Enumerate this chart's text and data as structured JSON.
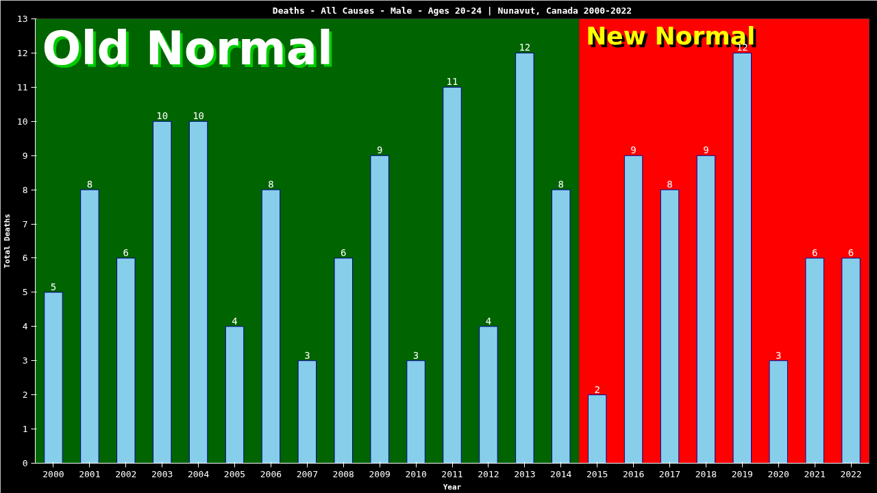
{
  "chart_data": {
    "type": "bar",
    "title": "Deaths - All Causes - Male - Ages 20-24 | Nunavut, Canada 2000-2022",
    "xlabel": "Year",
    "ylabel": "Total Deaths",
    "categories": [
      "2000",
      "2001",
      "2002",
      "2003",
      "2004",
      "2005",
      "2006",
      "2007",
      "2008",
      "2009",
      "2010",
      "2011",
      "2012",
      "2013",
      "2014",
      "2015",
      "2016",
      "2017",
      "2018",
      "2019",
      "2020",
      "2021",
      "2022"
    ],
    "values": [
      5,
      8,
      6,
      10,
      10,
      4,
      8,
      3,
      6,
      9,
      3,
      11,
      4,
      12,
      8,
      2,
      9,
      8,
      9,
      12,
      3,
      6,
      6
    ],
    "color": "#87ceeb",
    "data_labels": true,
    "grid": false,
    "ylim": [
      0,
      13
    ],
    "yticks": [
      0,
      1,
      2,
      3,
      4,
      5,
      6,
      7,
      8,
      9,
      10,
      11,
      12,
      13
    ],
    "bands": [
      {
        "axis": "x",
        "from": "2000",
        "to": "2014",
        "label": "Old Normal",
        "color": "#006400"
      },
      {
        "axis": "x",
        "from": "2015",
        "to": "2022",
        "label": "New Normal",
        "color": "#ff0000"
      }
    ]
  }
}
